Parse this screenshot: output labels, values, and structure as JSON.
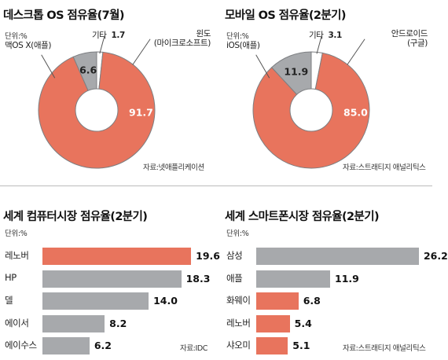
{
  "colors": {
    "orange": "#e8745d",
    "gray": "#a7a9ac"
  },
  "chart_data": [
    {
      "type": "pie",
      "title": "데스크톱 OS 점유율(7월)",
      "unit": "단위:%",
      "slices": [
        {
          "name": "윈도",
          "sub": "(마이크로소프트)",
          "value": 91.7,
          "label": "91.7",
          "color": "orange"
        },
        {
          "name": "맥OS X(애플)",
          "sub": "",
          "value": 6.6,
          "label": "6.6",
          "color": "gray"
        },
        {
          "name": "기타",
          "sub": "",
          "value": 1.7,
          "label": "1.7",
          "color": "white"
        }
      ],
      "source": "자료:넷애플리케이션"
    },
    {
      "type": "pie",
      "title": "모바일 OS 점유율(2분기)",
      "unit": "단위:%",
      "slices": [
        {
          "name": "안드로이드",
          "sub": "(구글)",
          "value": 85.0,
          "label": "85.0",
          "color": "orange"
        },
        {
          "name": "iOS(애플)",
          "sub": "",
          "value": 11.9,
          "label": "11.9",
          "color": "gray"
        },
        {
          "name": "기타",
          "sub": "",
          "value": 3.1,
          "label": "3.1",
          "color": "white"
        }
      ],
      "source": "자료:스트래티지 애널리틱스"
    },
    {
      "type": "bar",
      "title": "세계 컴퓨터시장 점유율(2분기)",
      "unit": "단위:%",
      "categories": [
        "레노버",
        "HP",
        "델",
        "에이서",
        "에이수스"
      ],
      "values": [
        19.6,
        18.3,
        14.0,
        8.2,
        6.2
      ],
      "labels": [
        "19.6",
        "18.3",
        "14.0",
        "8.2",
        "6.2"
      ],
      "colors": [
        "orange",
        "gray",
        "gray",
        "gray",
        "gray"
      ],
      "source": "자료:IDC"
    },
    {
      "type": "bar",
      "title": "세계 스마트폰시장 점유율(2분기)",
      "unit": "단위:%",
      "categories": [
        "삼성",
        "애플",
        "화웨이",
        "레노버",
        "샤오미"
      ],
      "values": [
        26.2,
        11.9,
        6.8,
        5.4,
        5.1
      ],
      "labels": [
        "26.2",
        "11.9",
        "6.8",
        "5.4",
        "5.1"
      ],
      "colors": [
        "gray",
        "gray",
        "orange",
        "orange",
        "orange"
      ],
      "source": "자료:스트래티지 애널리틱스"
    }
  ]
}
